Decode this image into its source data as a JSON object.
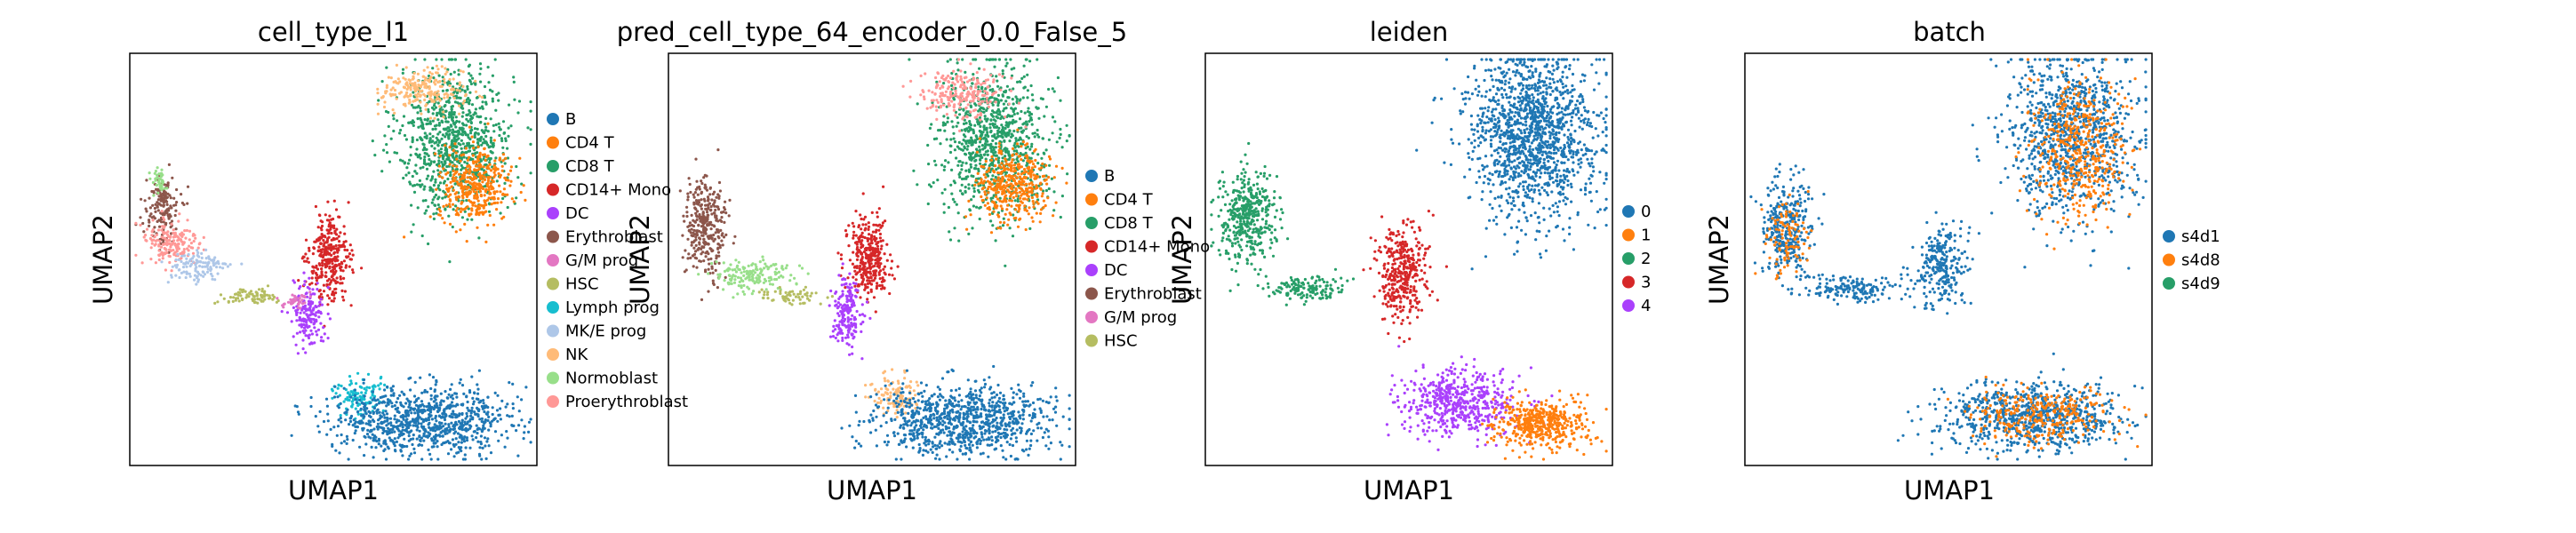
{
  "chart_data": [
    {
      "type": "scatter",
      "title": "cell_type_l1",
      "xlabel": "UMAP1",
      "ylabel": "UMAP2",
      "legend_position": "right",
      "legend": [
        {
          "label": "B",
          "color": "#1f77b4"
        },
        {
          "label": "CD4 T",
          "color": "#ff7f0e"
        },
        {
          "label": "CD8 T",
          "color": "#279e68"
        },
        {
          "label": "CD14+ Mono",
          "color": "#d62728"
        },
        {
          "label": "DC",
          "color": "#aa40fc"
        },
        {
          "label": "Erythroblast",
          "color": "#8c564b"
        },
        {
          "label": "G/M prog",
          "color": "#e377c2"
        },
        {
          "label": "HSC",
          "color": "#b5bd61"
        },
        {
          "label": "Lymph prog",
          "color": "#17becf"
        },
        {
          "label": "MK/E prog",
          "color": "#aec7e8"
        },
        {
          "label": "NK",
          "color": "#ffbb78"
        },
        {
          "label": "Normoblast",
          "color": "#98df8a"
        },
        {
          "label": "Proerythroblast",
          "color": "#ff9896"
        }
      ],
      "clusters": [
        {
          "color": "#279e68",
          "x": 0.8,
          "y": 0.79,
          "sx": 0.07,
          "sy": 0.09,
          "n": 900
        },
        {
          "color": "#ffbb78",
          "x": 0.72,
          "y": 0.91,
          "sx": 0.05,
          "sy": 0.025,
          "n": 220
        },
        {
          "color": "#ff7f0e",
          "x": 0.85,
          "y": 0.68,
          "sx": 0.045,
          "sy": 0.045,
          "n": 380
        },
        {
          "color": "#8c564b",
          "x": 0.08,
          "y": 0.62,
          "sx": 0.02,
          "sy": 0.04,
          "n": 160
        },
        {
          "color": "#ff9896",
          "x": 0.1,
          "y": 0.54,
          "sx": 0.035,
          "sy": 0.03,
          "n": 180
        },
        {
          "color": "#aec7e8",
          "x": 0.17,
          "y": 0.48,
          "sx": 0.04,
          "sy": 0.02,
          "n": 120
        },
        {
          "color": "#98df8a",
          "x": 0.07,
          "y": 0.69,
          "sx": 0.008,
          "sy": 0.015,
          "n": 40
        },
        {
          "color": "#b5bd61",
          "x": 0.3,
          "y": 0.41,
          "sx": 0.04,
          "sy": 0.01,
          "n": 80
        },
        {
          "color": "#d62728",
          "x": 0.49,
          "y": 0.5,
          "sx": 0.025,
          "sy": 0.05,
          "n": 320
        },
        {
          "color": "#aa40fc",
          "x": 0.44,
          "y": 0.37,
          "sx": 0.02,
          "sy": 0.04,
          "n": 160
        },
        {
          "color": "#e377c2",
          "x": 0.41,
          "y": 0.4,
          "sx": 0.015,
          "sy": 0.01,
          "n": 40
        },
        {
          "color": "#17becf",
          "x": 0.56,
          "y": 0.17,
          "sx": 0.03,
          "sy": 0.025,
          "n": 120
        },
        {
          "color": "#1f77b4",
          "x": 0.72,
          "y": 0.11,
          "sx": 0.11,
          "sy": 0.04,
          "n": 900
        }
      ]
    },
    {
      "type": "scatter",
      "title": "pred_cell_type_64_encoder_0.0_False_5",
      "xlabel": "UMAP1",
      "ylabel": "UMAP2",
      "legend_position": "right",
      "legend": [
        {
          "label": "B",
          "color": "#1f77b4"
        },
        {
          "label": "CD4 T",
          "color": "#ff7f0e"
        },
        {
          "label": "CD8 T",
          "color": "#279e68"
        },
        {
          "label": "CD14+ Mono",
          "color": "#d62728"
        },
        {
          "label": "DC",
          "color": "#aa40fc"
        },
        {
          "label": "Erythroblast",
          "color": "#8c564b"
        },
        {
          "label": "G/M prog",
          "color": "#e377c2"
        },
        {
          "label": "HSC",
          "color": "#b5bd61"
        }
      ],
      "clusters": [
        {
          "color": "#279e68",
          "x": 0.8,
          "y": 0.79,
          "sx": 0.07,
          "sy": 0.09,
          "n": 900
        },
        {
          "color": "#ff9896",
          "x": 0.72,
          "y": 0.9,
          "sx": 0.05,
          "sy": 0.03,
          "n": 220
        },
        {
          "color": "#ff7f0e",
          "x": 0.85,
          "y": 0.68,
          "sx": 0.045,
          "sy": 0.045,
          "n": 380
        },
        {
          "color": "#8c564b",
          "x": 0.09,
          "y": 0.58,
          "sx": 0.025,
          "sy": 0.06,
          "n": 330
        },
        {
          "color": "#98df8a",
          "x": 0.2,
          "y": 0.46,
          "sx": 0.05,
          "sy": 0.02,
          "n": 160
        },
        {
          "color": "#b5bd61",
          "x": 0.3,
          "y": 0.41,
          "sx": 0.04,
          "sy": 0.01,
          "n": 60
        },
        {
          "color": "#d62728",
          "x": 0.49,
          "y": 0.5,
          "sx": 0.025,
          "sy": 0.05,
          "n": 320
        },
        {
          "color": "#aa40fc",
          "x": 0.44,
          "y": 0.37,
          "sx": 0.02,
          "sy": 0.04,
          "n": 180
        },
        {
          "color": "#ffbb78",
          "x": 0.56,
          "y": 0.17,
          "sx": 0.03,
          "sy": 0.025,
          "n": 120
        },
        {
          "color": "#1f77b4",
          "x": 0.72,
          "y": 0.11,
          "sx": 0.11,
          "sy": 0.04,
          "n": 900
        }
      ]
    },
    {
      "type": "scatter",
      "title": "leiden",
      "xlabel": "UMAP1",
      "ylabel": "UMAP2",
      "legend_position": "right",
      "legend": [
        {
          "label": "0",
          "color": "#1f77b4"
        },
        {
          "label": "1",
          "color": "#ff7f0e"
        },
        {
          "label": "2",
          "color": "#279e68"
        },
        {
          "label": "3",
          "color": "#d62728"
        },
        {
          "label": "4",
          "color": "#aa40fc"
        }
      ],
      "clusters": [
        {
          "color": "#1f77b4",
          "x": 0.8,
          "y": 0.8,
          "sx": 0.08,
          "sy": 0.1,
          "n": 1400
        },
        {
          "color": "#279e68",
          "x": 0.1,
          "y": 0.6,
          "sx": 0.035,
          "sy": 0.06,
          "n": 420
        },
        {
          "color": "#279e68",
          "x": 0.25,
          "y": 0.43,
          "sx": 0.05,
          "sy": 0.015,
          "n": 140
        },
        {
          "color": "#d62728",
          "x": 0.48,
          "y": 0.47,
          "sx": 0.03,
          "sy": 0.06,
          "n": 380
        },
        {
          "color": "#aa40fc",
          "x": 0.62,
          "y": 0.15,
          "sx": 0.07,
          "sy": 0.04,
          "n": 520
        },
        {
          "color": "#ff7f0e",
          "x": 0.83,
          "y": 0.1,
          "sx": 0.06,
          "sy": 0.03,
          "n": 460
        }
      ]
    },
    {
      "type": "scatter",
      "title": "batch",
      "xlabel": "UMAP1",
      "ylabel": "UMAP2",
      "legend_position": "right",
      "legend": [
        {
          "label": "s4d1",
          "color": "#1f77b4"
        },
        {
          "label": "s4d8",
          "color": "#ff7f0e"
        },
        {
          "label": "s4d9",
          "color": "#279e68"
        }
      ],
      "clusters": [
        {
          "color": "#1f77b4",
          "x": 0.8,
          "y": 0.8,
          "sx": 0.08,
          "sy": 0.1,
          "n": 1000
        },
        {
          "color": "#ff7f0e",
          "x": 0.82,
          "y": 0.77,
          "sx": 0.06,
          "sy": 0.08,
          "n": 450
        },
        {
          "color": "#1f77b4",
          "x": 0.1,
          "y": 0.58,
          "sx": 0.03,
          "sy": 0.06,
          "n": 320
        },
        {
          "color": "#ff7f0e",
          "x": 0.11,
          "y": 0.55,
          "sx": 0.025,
          "sy": 0.04,
          "n": 100
        },
        {
          "color": "#1f77b4",
          "x": 0.26,
          "y": 0.43,
          "sx": 0.06,
          "sy": 0.015,
          "n": 160
        },
        {
          "color": "#1f77b4",
          "x": 0.48,
          "y": 0.48,
          "sx": 0.03,
          "sy": 0.05,
          "n": 260
        },
        {
          "color": "#1f77b4",
          "x": 0.7,
          "y": 0.12,
          "sx": 0.11,
          "sy": 0.04,
          "n": 800
        },
        {
          "color": "#ff7f0e",
          "x": 0.72,
          "y": 0.12,
          "sx": 0.09,
          "sy": 0.035,
          "n": 300
        }
      ]
    }
  ]
}
